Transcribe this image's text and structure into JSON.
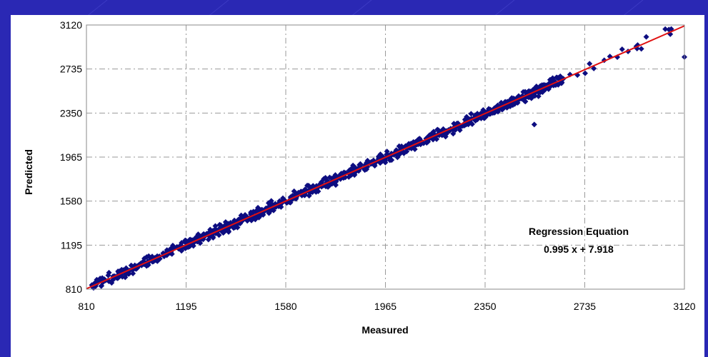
{
  "colors": {
    "background": "#2a28b4",
    "panel": "#ffffff",
    "marker": "#0d0d80",
    "fit_line": "#e01010",
    "grid": "#9a9a9a"
  },
  "chart_data": {
    "type": "scatter",
    "title": "",
    "xlabel": "Measured",
    "ylabel": "Predicted",
    "xlim": [
      810,
      3120
    ],
    "ylim": [
      810,
      3120
    ],
    "xticks": [
      810,
      1195,
      1580,
      1965,
      2350,
      2735,
      3120
    ],
    "yticks": [
      810,
      1195,
      1580,
      1965,
      2350,
      2735,
      3120
    ],
    "grid": true,
    "marker": "diamond",
    "regression": {
      "label_line1": "Regression Equation",
      "label_line2": "0.995 x + 7.918",
      "slope": 0.995,
      "intercept": 7.918
    },
    "highlight_points": [
      {
        "x": 2170,
        "y": 2200
      },
      {
        "x": 3120,
        "y": 2840
      },
      {
        "x": 3060,
        "y": 3080
      },
      {
        "x": 2540,
        "y": 2250
      },
      {
        "x": 2770,
        "y": 2740
      }
    ]
  }
}
